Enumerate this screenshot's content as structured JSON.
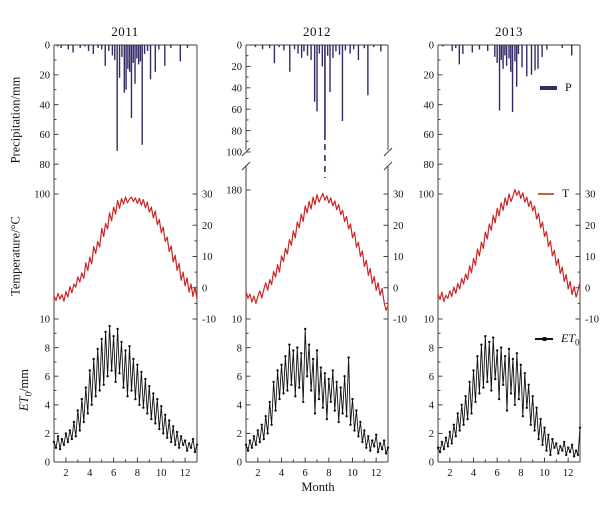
{
  "figure": {
    "titles": [
      "2011",
      "2012",
      "2013"
    ],
    "axis_labels": {
      "precipitation": "Precipitation/mm",
      "temperature": "Temperature/°C",
      "et0_italic": "ET",
      "et0_sub": "0",
      "et0_rest": "/mm",
      "month": "Month"
    },
    "legend": {
      "p_label": "P",
      "t_label": "T",
      "et0_italic": "ET",
      "et0_sub": "0"
    },
    "colors": {
      "precipitation_bar": "#332b66",
      "temperature_line": "#c92626",
      "temperature_legend": "#cd5c3c",
      "et0_line": "#111111",
      "axis": "#404040",
      "text": "#111111"
    }
  },
  "chart_data": {
    "type": "bar+line multi-panel (3 columns = years, 3 rows = variables)",
    "years": [
      "2011",
      "2012",
      "2013"
    ],
    "x": {
      "label": "Month",
      "range": [
        1,
        13
      ],
      "major_ticks": [
        2,
        4,
        6,
        8,
        10,
        12
      ],
      "minor_ticks": [
        3,
        5,
        7,
        9,
        11
      ]
    },
    "precipitation": {
      "unit": "mm",
      "orientation": "bars hang downward from 0 at top",
      "ticks_2011_2013": [
        0,
        20,
        40,
        60,
        80,
        100
      ],
      "ticks_2012": [
        0,
        20,
        40,
        60,
        80,
        100,
        180
      ],
      "axis_break_2012": {
        "after": 100,
        "resume": 180,
        "broken_bar_month": 7.67,
        "broken_bar_value": 140
      },
      "minor_ticks_every": 10,
      "events_month_mm": {
        "2011": [
          [
            1.3,
            1
          ],
          [
            1.6,
            2
          ],
          [
            2.2,
            3
          ],
          [
            2.6,
            5
          ],
          [
            3.2,
            2
          ],
          [
            3.6,
            1
          ],
          [
            3.9,
            4
          ],
          [
            4.3,
            6
          ],
          [
            4.7,
            2
          ],
          [
            5.0,
            3
          ],
          [
            5.3,
            14
          ],
          [
            5.6,
            4
          ],
          [
            5.9,
            7
          ],
          [
            6.1,
            10
          ],
          [
            6.3,
            71
          ],
          [
            6.5,
            22
          ],
          [
            6.7,
            8
          ],
          [
            6.9,
            32
          ],
          [
            7.05,
            30
          ],
          [
            7.2,
            16
          ],
          [
            7.35,
            18
          ],
          [
            7.5,
            49
          ],
          [
            7.65,
            12
          ],
          [
            7.8,
            26
          ],
          [
            7.95,
            9
          ],
          [
            8.1,
            13
          ],
          [
            8.25,
            11
          ],
          [
            8.4,
            67
          ],
          [
            8.6,
            6
          ],
          [
            8.85,
            4
          ],
          [
            9.1,
            23
          ],
          [
            9.5,
            18
          ],
          [
            9.8,
            3
          ],
          [
            10.3,
            14
          ],
          [
            10.8,
            2
          ],
          [
            11.6,
            11
          ],
          [
            12.2,
            2
          ]
        ],
        "2012": [
          [
            1.8,
            2
          ],
          [
            2.4,
            4
          ],
          [
            3.0,
            3
          ],
          [
            3.4,
            17
          ],
          [
            3.8,
            2
          ],
          [
            4.2,
            5
          ],
          [
            4.7,
            25
          ],
          [
            5.1,
            4
          ],
          [
            5.4,
            8
          ],
          [
            5.7,
            12
          ],
          [
            5.9,
            6
          ],
          [
            6.2,
            10
          ],
          [
            6.5,
            14
          ],
          [
            6.8,
            53
          ],
          [
            7.0,
            62
          ],
          [
            7.2,
            8
          ],
          [
            7.45,
            20
          ],
          [
            7.67,
            140
          ],
          [
            7.9,
            10
          ],
          [
            8.1,
            44
          ],
          [
            8.35,
            12
          ],
          [
            8.6,
            6
          ],
          [
            8.9,
            9
          ],
          [
            9.15,
            71
          ],
          [
            9.4,
            5
          ],
          [
            9.8,
            8
          ],
          [
            10.1,
            4
          ],
          [
            10.5,
            14
          ],
          [
            11.0,
            3
          ],
          [
            11.3,
            47
          ],
          [
            11.8,
            2
          ],
          [
            12.4,
            6
          ]
        ],
        "2013": [
          [
            1.4,
            1
          ],
          [
            2.2,
            4
          ],
          [
            2.5,
            2
          ],
          [
            2.8,
            13
          ],
          [
            3.1,
            6
          ],
          [
            3.9,
            5
          ],
          [
            4.5,
            3
          ],
          [
            5.2,
            4
          ],
          [
            5.8,
            8
          ],
          [
            6.0,
            12
          ],
          [
            6.2,
            44
          ],
          [
            6.35,
            10
          ],
          [
            6.5,
            16
          ],
          [
            6.65,
            7
          ],
          [
            6.8,
            14
          ],
          [
            7.0,
            9
          ],
          [
            7.15,
            18
          ],
          [
            7.3,
            45
          ],
          [
            7.5,
            11
          ],
          [
            7.65,
            28
          ],
          [
            7.8,
            6
          ],
          [
            8.1,
            15
          ],
          [
            8.5,
            21
          ],
          [
            8.9,
            20
          ],
          [
            9.2,
            17
          ],
          [
            9.45,
            16
          ],
          [
            9.8,
            8
          ],
          [
            10.2,
            3
          ],
          [
            11.5,
            2
          ],
          [
            12.3,
            7
          ]
        ]
      }
    },
    "temperature": {
      "unit": "°C",
      "right_axis_ticks": [
        30,
        20,
        10,
        0,
        -10
      ],
      "minor_ticks": [
        25,
        15,
        5,
        -5
      ],
      "x_start_month": 1,
      "x_step_month": 0.166667,
      "series": {
        "2011": [
          -2.5,
          -4.1,
          -1.8,
          -3.6,
          -2.2,
          -4.3,
          -1.2,
          -3.0,
          0.4,
          -1.6,
          1.2,
          0.2,
          3.5,
          1.8,
          4.8,
          3.0,
          8.0,
          5.5,
          9.8,
          7.6,
          13.2,
          11.0,
          14.8,
          13.0,
          19.0,
          16.4,
          20.6,
          18.8,
          24.0,
          21.4,
          25.8,
          23.6,
          28.0,
          25.4,
          28.6,
          26.8,
          29.0,
          27.2,
          28.4,
          29.0,
          27.6,
          28.8,
          27.0,
          28.6,
          26.4,
          28.2,
          25.6,
          27.4,
          24.2,
          25.8,
          22.4,
          24.6,
          20.2,
          21.8,
          17.6,
          19.4,
          14.8,
          16.2,
          11.6,
          13.4,
          8.2,
          10.4,
          5.6,
          7.8,
          2.4,
          5.0,
          0.6,
          3.2,
          -1.4,
          1.2,
          -2.8,
          0.2,
          -3.6
        ],
        "2012": [
          -1.2,
          -3.4,
          -2.0,
          -4.6,
          -2.6,
          -5.0,
          -2.8,
          -1.0,
          -3.2,
          -0.6,
          1.6,
          -0.8,
          2.6,
          1.0,
          5.2,
          3.4,
          7.4,
          5.0,
          10.2,
          8.4,
          12.6,
          10.8,
          15.4,
          13.6,
          18.2,
          16.0,
          21.0,
          19.2,
          23.6,
          21.2,
          26.2,
          24.0,
          27.6,
          25.2,
          29.0,
          26.6,
          29.8,
          27.4,
          28.8,
          30.2,
          28.0,
          29.4,
          27.2,
          28.8,
          26.2,
          27.8,
          25.0,
          26.6,
          23.4,
          24.8,
          21.2,
          22.8,
          18.8,
          20.4,
          16.0,
          17.8,
          13.0,
          14.6,
          10.0,
          11.8,
          6.8,
          8.8,
          4.0,
          6.2,
          1.4,
          3.6,
          -0.8,
          1.6,
          -2.4,
          -0.2,
          -4.6,
          -7.2,
          -5.8
        ],
        "2013": [
          -2.0,
          -3.8,
          -1.4,
          -4.4,
          -2.4,
          -3.4,
          -1.0,
          -2.8,
          0.2,
          -1.8,
          1.4,
          -0.4,
          3.0,
          1.2,
          4.4,
          2.6,
          7.0,
          4.8,
          9.4,
          7.2,
          12.4,
          10.2,
          14.6,
          12.6,
          17.8,
          15.6,
          20.4,
          18.4,
          23.2,
          20.8,
          25.4,
          23.0,
          27.2,
          24.8,
          28.8,
          26.4,
          30.0,
          27.6,
          29.2,
          31.4,
          29.6,
          31.0,
          28.6,
          30.4,
          27.4,
          29.0,
          26.0,
          27.8,
          24.6,
          26.2,
          22.0,
          23.8,
          19.2,
          21.0,
          16.4,
          18.0,
          13.2,
          15.0,
          10.2,
          12.0,
          7.2,
          9.2,
          4.6,
          6.6,
          2.0,
          4.2,
          -0.4,
          2.0,
          -2.2,
          0.4,
          -3.0,
          -0.8,
          1.8
        ]
      }
    },
    "et0": {
      "unit": "mm",
      "ticks": [
        10,
        8,
        6,
        4,
        2,
        0
      ],
      "minor_ticks": [
        9,
        7,
        5,
        3,
        1
      ],
      "x_start_month": 1,
      "x_step_month": 0.166667,
      "series": {
        "2011": [
          1.4,
          1.0,
          1.8,
          0.9,
          1.6,
          1.2,
          2.0,
          1.4,
          2.2,
          1.6,
          2.8,
          1.8,
          3.6,
          2.2,
          4.4,
          2.8,
          5.2,
          3.4,
          6.4,
          4.0,
          7.2,
          4.6,
          7.9,
          5.0,
          8.6,
          5.4,
          9.1,
          6.0,
          9.5,
          6.4,
          8.8,
          5.6,
          9.3,
          6.2,
          8.4,
          5.2,
          7.8,
          4.6,
          8.1,
          5.0,
          7.2,
          4.4,
          6.8,
          4.0,
          6.3,
          3.8,
          5.8,
          3.4,
          5.3,
          3.0,
          4.8,
          2.7,
          4.4,
          2.3,
          3.9,
          2.0,
          3.3,
          1.7,
          2.9,
          1.4,
          2.5,
          1.2,
          2.1,
          1.0,
          1.8,
          1.2,
          1.5,
          0.8,
          1.3,
          1.0,
          1.6,
          0.7,
          1.2
        ],
        "2012": [
          1.2,
          0.8,
          1.5,
          1.0,
          1.8,
          1.2,
          2.2,
          1.4,
          2.6,
          1.6,
          3.2,
          2.0,
          4.2,
          2.6,
          5.6,
          3.6,
          6.4,
          4.4,
          6.8,
          4.8,
          7.4,
          5.0,
          8.2,
          5.4,
          7.8,
          4.6,
          8.0,
          5.2,
          7.6,
          4.2,
          9.3,
          6.0,
          8.2,
          5.0,
          7.2,
          3.4,
          7.8,
          4.4,
          6.6,
          3.8,
          6.2,
          3.0,
          5.8,
          4.2,
          6.4,
          3.6,
          5.6,
          2.8,
          5.2,
          3.4,
          6.0,
          3.2,
          7.3,
          2.6,
          4.4,
          2.2,
          3.6,
          1.8,
          2.8,
          1.4,
          2.2,
          1.0,
          1.8,
          0.8,
          1.5,
          1.1,
          1.9,
          0.7,
          1.3,
          0.9,
          1.5,
          0.6,
          1.0
        ],
        "2013": [
          1.0,
          0.7,
          1.4,
          0.9,
          1.7,
          1.1,
          2.1,
          1.3,
          2.6,
          1.8,
          3.4,
          2.2,
          4.0,
          2.6,
          4.6,
          3.0,
          5.6,
          3.4,
          6.4,
          4.2,
          7.4,
          4.8,
          8.2,
          5.2,
          8.8,
          5.6,
          8.4,
          5.0,
          8.7,
          5.8,
          7.8,
          4.4,
          8.0,
          5.4,
          7.4,
          3.6,
          7.9,
          4.8,
          7.2,
          4.0,
          7.6,
          4.4,
          6.8,
          3.2,
          6.2,
          3.8,
          5.4,
          2.6,
          4.6,
          2.2,
          3.8,
          1.6,
          3.0,
          1.2,
          2.4,
          0.8,
          1.9,
          0.5,
          1.6,
          1.0,
          1.3,
          0.6,
          1.1,
          0.8,
          1.4,
          0.5,
          1.0,
          0.7,
          1.2,
          0.4,
          0.8,
          0.5,
          2.4
        ]
      }
    }
  }
}
